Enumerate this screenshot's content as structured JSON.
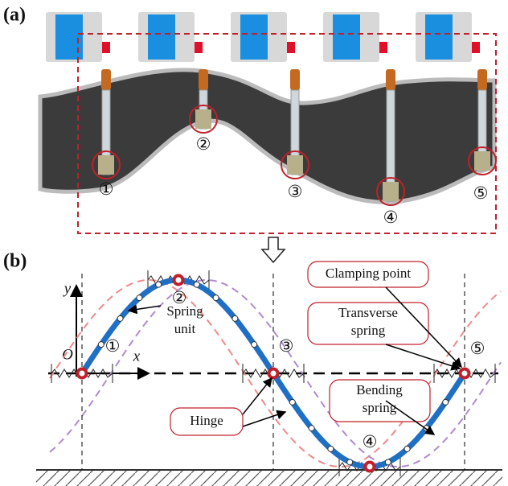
{
  "panel_a": {
    "label": "(a)",
    "markers": [
      "①",
      "②",
      "③",
      "④",
      "⑤"
    ]
  },
  "panel_b": {
    "label": "(b)",
    "axes": {
      "origin": "O",
      "x": "x",
      "y": "y"
    },
    "nodes": [
      "①",
      "②",
      "③",
      "④",
      "⑤"
    ],
    "callouts": [
      {
        "lines": [
          "Spring",
          "unit"
        ]
      },
      {
        "lines": [
          "Clamping point"
        ]
      },
      {
        "lines": [
          "Transverse",
          "spring"
        ]
      },
      {
        "lines": [
          "Bending",
          "spring"
        ]
      },
      {
        "lines": [
          "Hinge"
        ]
      }
    ]
  }
}
